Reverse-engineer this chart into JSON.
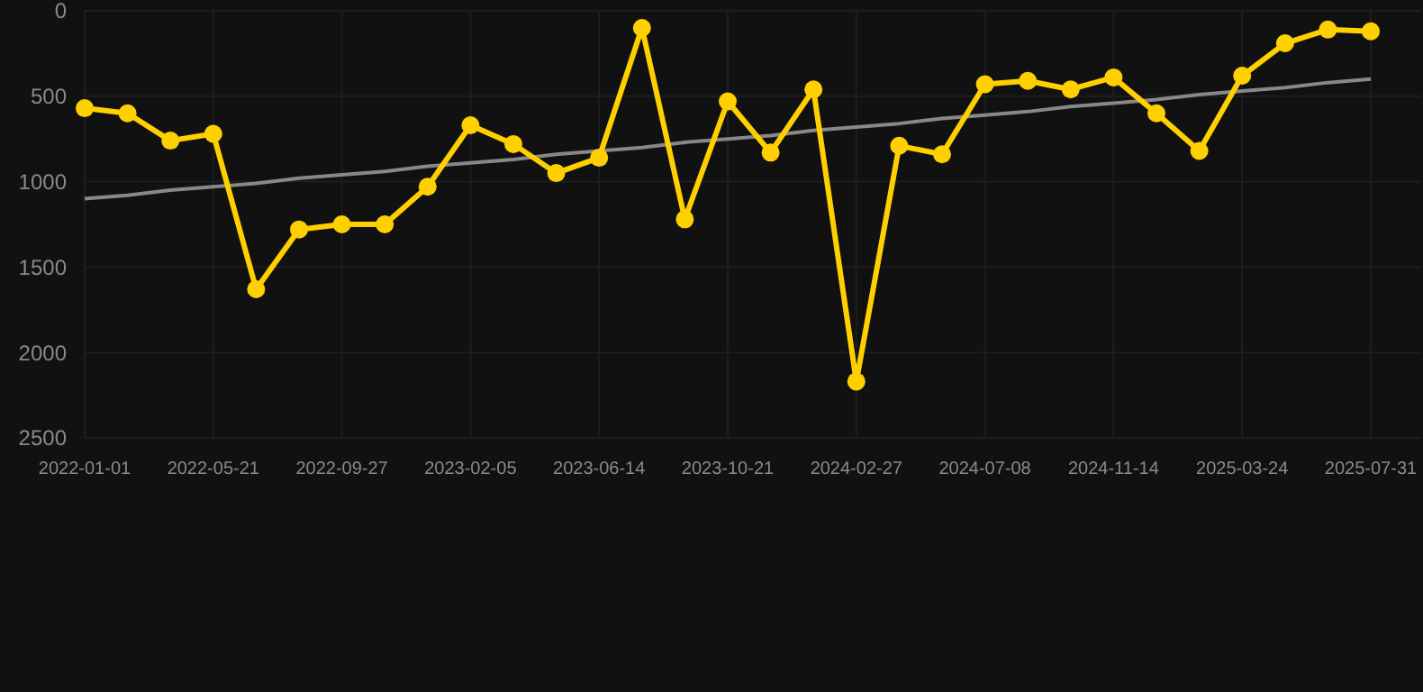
{
  "chart_data": {
    "type": "line",
    "categories": [
      "2022-01-01",
      null,
      null,
      "2022-05-21",
      null,
      null,
      "2022-09-27",
      null,
      null,
      "2023-02-05",
      null,
      null,
      "2023-06-14",
      null,
      null,
      "2023-10-21",
      null,
      null,
      "2024-02-27",
      null,
      null,
      "2024-07-08",
      null,
      null,
      "2024-11-14",
      null,
      null,
      "2025-03-24",
      null,
      null,
      "2025-07-31"
    ],
    "series": [
      {
        "color": "#ffd000",
        "marker": "circle",
        "values": [
          570,
          600,
          760,
          720,
          1630,
          1280,
          1250,
          1250,
          1030,
          670,
          780,
          950,
          860,
          100,
          1220,
          530,
          830,
          460,
          2170,
          790,
          840,
          430,
          410,
          460,
          390,
          600,
          820,
          380,
          190,
          110,
          120
        ]
      },
      {
        "type": "line",
        "color": "#888888",
        "marker": "none",
        "values": [
          1100,
          1080,
          1050,
          1030,
          1010,
          980,
          960,
          940,
          910,
          890,
          870,
          840,
          820,
          800,
          770,
          750,
          730,
          700,
          680,
          660,
          630,
          610,
          590,
          560,
          540,
          520,
          490,
          470,
          450,
          420,
          400
        ]
      }
    ],
    "ylim": [
      2500,
      0
    ],
    "yticks": [
      0,
      500,
      1000,
      1500,
      2000,
      2500
    ],
    "grid": true
  }
}
